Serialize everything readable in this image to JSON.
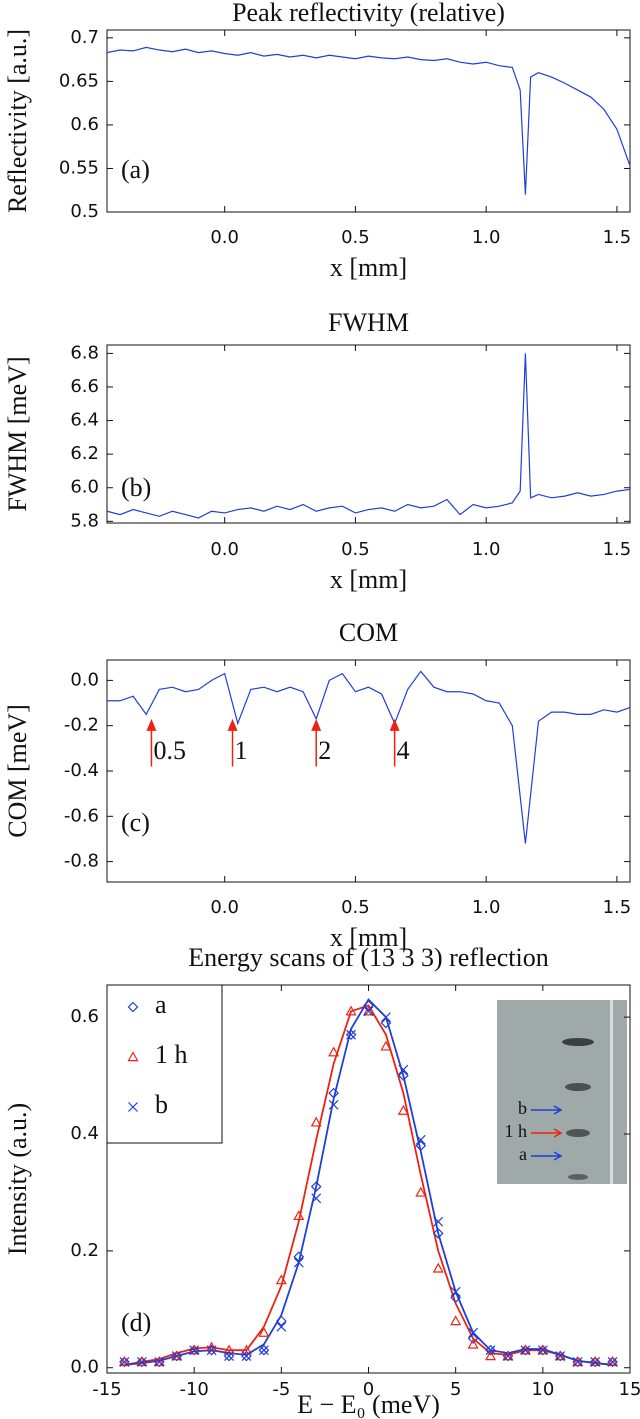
{
  "chart_data": [
    {
      "type": "line",
      "title": "Peak reflectivity (relative)",
      "x_label": "x [mm]",
      "y_label": "Reflectivity [a.u.]",
      "panel_label": "(a)",
      "x": [
        -0.45,
        -0.4,
        -0.35,
        -0.3,
        -0.25,
        -0.2,
        -0.15,
        -0.1,
        -0.05,
        0,
        0.05,
        0.1,
        0.15,
        0.2,
        0.25,
        0.3,
        0.35,
        0.4,
        0.45,
        0.5,
        0.55,
        0.6,
        0.65,
        0.7,
        0.75,
        0.8,
        0.85,
        0.9,
        0.95,
        1.0,
        1.05,
        1.1,
        1.13,
        1.15,
        1.17,
        1.2,
        1.25,
        1.3,
        1.35,
        1.4,
        1.45,
        1.5,
        1.55
      ],
      "series": [
        {
          "color": "#1f3fd6",
          "values": [
            0.683,
            0.686,
            0.685,
            0.689,
            0.686,
            0.684,
            0.687,
            0.683,
            0.685,
            0.682,
            0.68,
            0.683,
            0.679,
            0.681,
            0.678,
            0.68,
            0.677,
            0.68,
            0.678,
            0.676,
            0.679,
            0.677,
            0.676,
            0.678,
            0.675,
            0.674,
            0.676,
            0.672,
            0.67,
            0.672,
            0.668,
            0.666,
            0.64,
            0.52,
            0.655,
            0.66,
            0.655,
            0.648,
            0.64,
            0.632,
            0.618,
            0.595,
            0.553
          ]
        }
      ],
      "xlim": [
        -0.45,
        1.55
      ],
      "xticks": [
        {
          "value": 0,
          "label": "0.0"
        },
        0.5,
        {
          "value": 1,
          "label": "1.0"
        },
        1.5
      ],
      "ylim": [
        0.5,
        0.709
      ],
      "yticks": [
        0.5,
        0.55,
        0.6,
        0.65,
        0.7
      ]
    },
    {
      "type": "line",
      "title": "FWHM",
      "x_label": "x [mm]",
      "y_label": "FWHM [meV]",
      "panel_label": "(b)",
      "x": [
        -0.45,
        -0.4,
        -0.35,
        -0.3,
        -0.25,
        -0.2,
        -0.15,
        -0.1,
        -0.05,
        0,
        0.05,
        0.1,
        0.15,
        0.2,
        0.25,
        0.3,
        0.35,
        0.4,
        0.45,
        0.5,
        0.55,
        0.6,
        0.65,
        0.7,
        0.75,
        0.8,
        0.85,
        0.9,
        0.95,
        1.0,
        1.05,
        1.1,
        1.13,
        1.15,
        1.17,
        1.2,
        1.25,
        1.3,
        1.35,
        1.4,
        1.45,
        1.5,
        1.55
      ],
      "series": [
        {
          "color": "#1f3fd6",
          "values": [
            5.86,
            5.84,
            5.87,
            5.85,
            5.83,
            5.86,
            5.84,
            5.82,
            5.86,
            5.85,
            5.87,
            5.88,
            5.86,
            5.89,
            5.87,
            5.9,
            5.86,
            5.88,
            5.89,
            5.85,
            5.87,
            5.88,
            5.86,
            5.9,
            5.88,
            5.89,
            5.93,
            5.84,
            5.9,
            5.88,
            5.89,
            5.91,
            5.98,
            6.8,
            5.94,
            5.96,
            5.94,
            5.95,
            5.97,
            5.95,
            5.96,
            5.98,
            5.99
          ]
        }
      ],
      "xlim": [
        -0.45,
        1.55
      ],
      "xticks": [
        {
          "value": 0,
          "label": "0.0"
        },
        0.5,
        {
          "value": 1,
          "label": "1.0"
        },
        1.5
      ],
      "ylim": [
        5.79,
        6.85
      ],
      "yticks": [
        5.8,
        {
          "value": 6,
          "label": "6.0"
        },
        6.2,
        6.4,
        6.6,
        6.8
      ]
    },
    {
      "type": "line",
      "title": "COM",
      "x_label": "x [mm]",
      "y_label": "COM [meV]",
      "panel_label": "(c)",
      "x": [
        -0.45,
        -0.4,
        -0.35,
        -0.3,
        -0.25,
        -0.2,
        -0.15,
        -0.1,
        -0.05,
        0,
        0.05,
        0.1,
        0.15,
        0.2,
        0.25,
        0.3,
        0.35,
        0.4,
        0.45,
        0.5,
        0.55,
        0.6,
        0.65,
        0.7,
        0.75,
        0.8,
        0.85,
        0.9,
        0.95,
        1.0,
        1.05,
        1.1,
        1.15,
        1.2,
        1.25,
        1.3,
        1.35,
        1.4,
        1.45,
        1.5,
        1.55
      ],
      "series": [
        {
          "color": "#1f3fd6",
          "values": [
            -0.09,
            -0.09,
            -0.07,
            -0.15,
            -0.04,
            -0.03,
            -0.05,
            -0.04,
            0.0,
            0.03,
            -0.19,
            -0.04,
            -0.03,
            -0.05,
            -0.03,
            -0.05,
            -0.17,
            0.0,
            0.03,
            -0.05,
            -0.03,
            -0.06,
            -0.19,
            -0.04,
            0.04,
            -0.03,
            -0.05,
            -0.05,
            -0.06,
            -0.09,
            -0.1,
            -0.2,
            -0.72,
            -0.18,
            -0.14,
            -0.14,
            -0.15,
            -0.15,
            -0.13,
            -0.14,
            -0.12
          ]
        }
      ],
      "annotation_color": "#ee2211",
      "annotations": [
        {
          "text": "0.5",
          "x": -0.28
        },
        {
          "text": "1",
          "x": 0.03
        },
        {
          "text": "2",
          "x": 0.35
        },
        {
          "text": "4",
          "x": 0.65
        }
      ],
      "xlim": [
        -0.45,
        1.55
      ],
      "xticks": [
        {
          "value": 0,
          "label": "0.0"
        },
        0.5,
        {
          "value": 1,
          "label": "1.0"
        },
        1.5
      ],
      "ylim": [
        -0.89,
        0.09
      ],
      "yticks": [
        {
          "value": 0,
          "label": "0.0"
        },
        -0.2,
        -0.4,
        -0.6,
        -0.8
      ]
    },
    {
      "type": "scatter",
      "title": "Energy scans of (13 3 3) reflection",
      "x_label": "E − E₀ (meV)",
      "y_label": "Intensity (a.u.)",
      "panel_label": "(d)",
      "x": [
        -14,
        -13,
        -12,
        -11,
        -10,
        -9,
        -8,
        -7,
        -6,
        -5,
        -4,
        -3,
        -2,
        -1,
        0,
        1,
        2,
        3,
        4,
        5,
        6,
        7,
        8,
        9,
        10,
        11,
        12,
        13,
        14
      ],
      "series": [
        {
          "name": "a",
          "color": "#1f3fd6",
          "marker": "diamond",
          "values": [
            0.01,
            0.01,
            0.01,
            0.02,
            0.03,
            0.03,
            0.02,
            0.02,
            0.03,
            0.08,
            0.19,
            0.31,
            0.47,
            0.57,
            0.62,
            0.59,
            0.5,
            0.38,
            0.23,
            0.12,
            0.05,
            0.03,
            0.02,
            0.03,
            0.03,
            0.02,
            0.01,
            0.01,
            0.01
          ]
        },
        {
          "name": "1 h",
          "color": "#ee2211",
          "marker": "triangle",
          "values": [
            0.01,
            0.01,
            0.01,
            0.02,
            0.03,
            0.035,
            0.03,
            0.03,
            0.06,
            0.15,
            0.26,
            0.42,
            0.54,
            0.61,
            0.61,
            0.55,
            0.44,
            0.3,
            0.17,
            0.08,
            0.04,
            0.02,
            0.02,
            0.03,
            0.03,
            0.02,
            0.01,
            0.01,
            0.01
          ]
        },
        {
          "name": "b",
          "color": "#1f3fd6",
          "marker": "cross",
          "values": [
            0.01,
            0.01,
            0.01,
            0.02,
            0.03,
            0.03,
            0.02,
            0.02,
            0.03,
            0.07,
            0.18,
            0.29,
            0.45,
            0.57,
            0.61,
            0.6,
            0.51,
            0.39,
            0.25,
            0.13,
            0.06,
            0.03,
            0.02,
            0.03,
            0.03,
            0.02,
            0.01,
            0.01,
            0.01
          ]
        }
      ],
      "fits": [
        {
          "color": "#ee2211",
          "values": [
            0.005,
            0.01,
            0.015,
            0.025,
            0.033,
            0.035,
            0.03,
            0.03,
            0.07,
            0.14,
            0.25,
            0.39,
            0.52,
            0.61,
            0.62,
            0.57,
            0.47,
            0.33,
            0.2,
            0.11,
            0.05,
            0.025,
            0.022,
            0.03,
            0.03,
            0.022,
            0.012,
            0.008,
            0.005
          ]
        },
        {
          "color": "#1f3fd6",
          "values": [
            0.005,
            0.008,
            0.012,
            0.02,
            0.028,
            0.03,
            0.025,
            0.022,
            0.04,
            0.09,
            0.18,
            0.31,
            0.46,
            0.58,
            0.63,
            0.6,
            0.5,
            0.37,
            0.23,
            0.13,
            0.06,
            0.03,
            0.025,
            0.032,
            0.032,
            0.022,
            0.012,
            0.008,
            0.005
          ]
        }
      ],
      "legend": "upper left",
      "inset_labels": [
        {
          "text": "b",
          "color": "#1f3fd6"
        },
        {
          "text": "1 h",
          "color": "#ee2211"
        },
        {
          "text": "a",
          "color": "#1f3fd6"
        }
      ],
      "xlim": [
        -15,
        15
      ],
      "xticks": [
        -15,
        -10,
        -5,
        0,
        5,
        10,
        15
      ],
      "ylim": [
        -0.009,
        0.655
      ],
      "yticks": [
        {
          "value": 0,
          "label": "0.0"
        },
        0.2,
        0.4,
        0.6
      ]
    }
  ]
}
